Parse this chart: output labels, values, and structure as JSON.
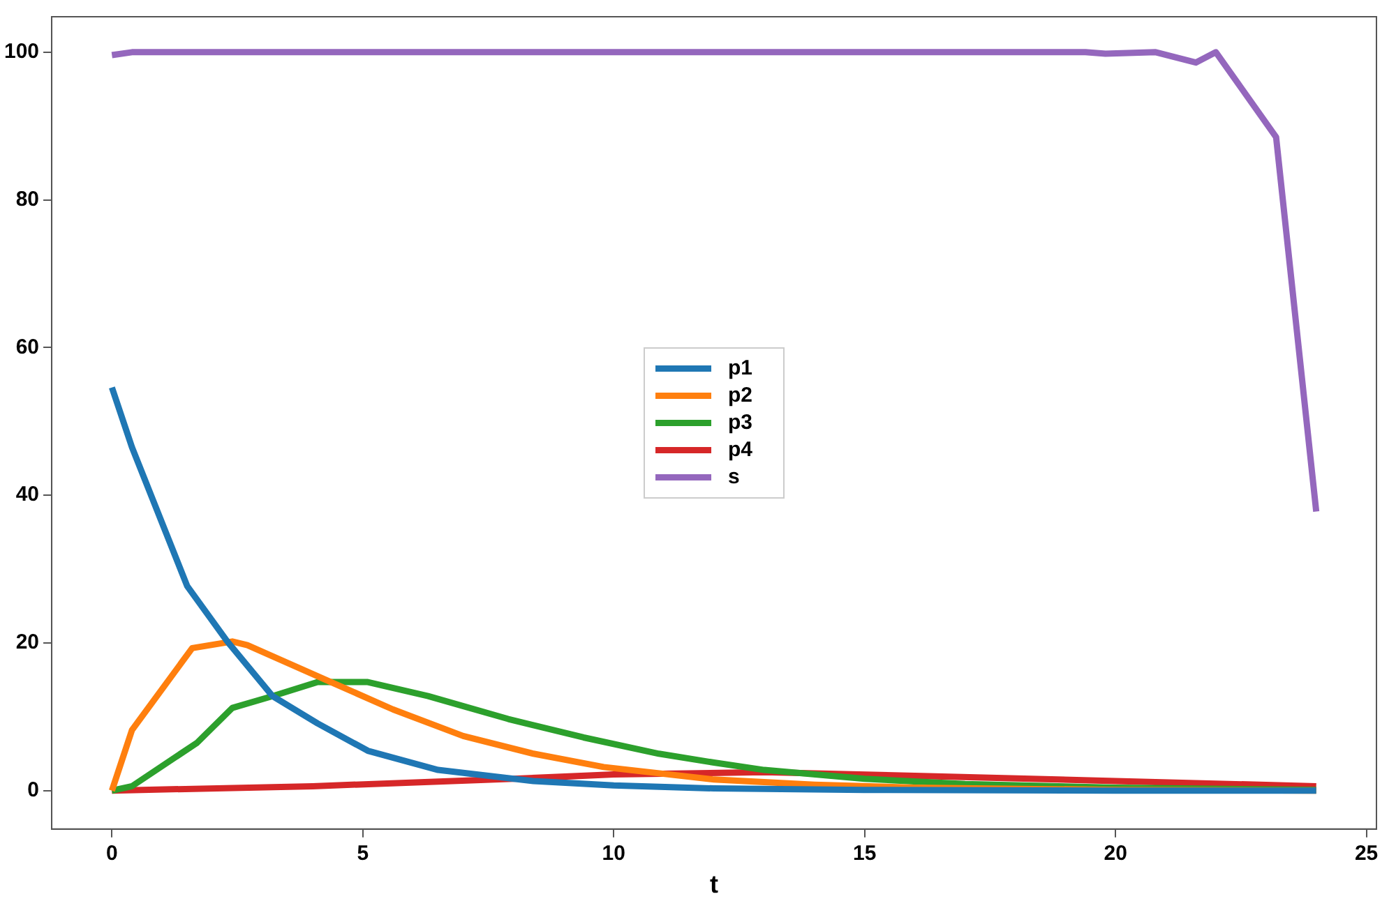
{
  "chart_data": {
    "type": "line",
    "xlabel": "t",
    "xlim": [
      -1.2,
      25.2
    ],
    "ylim": [
      -5.2,
      104.8
    ],
    "xticks": [
      0,
      5,
      10,
      15,
      20,
      25
    ],
    "yticks": [
      0,
      20,
      40,
      60,
      80,
      100
    ],
    "legend": "center",
    "grid": false,
    "marker": "none",
    "line_style": "solid",
    "series": [
      {
        "name": "p1",
        "color": "#1f77b4",
        "x": [
          0,
          0.4,
          1.5,
          2.3,
          3.2,
          4.1,
          5.1,
          6.5,
          8.4,
          10,
          12,
          15,
          20,
          24
        ],
        "values": [
          54.6,
          46.5,
          27.7,
          20.2,
          12.8,
          9.1,
          5.4,
          2.8,
          1.3,
          0.7,
          0.3,
          0.1,
          0,
          0
        ]
      },
      {
        "name": "p2",
        "color": "#ff7f0e",
        "x": [
          0,
          0.4,
          1.6,
          2.4,
          2.7,
          4.2,
          5.6,
          7,
          8.4,
          9.8,
          12,
          14,
          16,
          20,
          24
        ],
        "values": [
          0,
          8.2,
          19.3,
          20.2,
          19.7,
          15.2,
          11,
          7.4,
          5,
          3.2,
          1.5,
          0.8,
          0.4,
          0.1,
          0
        ]
      },
      {
        "name": "p3",
        "color": "#2ca02c",
        "x": [
          0,
          0.4,
          1.7,
          2.4,
          3.2,
          4.1,
          5.1,
          6.3,
          7.9,
          9.4,
          10.9,
          12,
          13,
          15,
          17,
          20,
          24
        ],
        "values": [
          0,
          0.6,
          6.5,
          11.2,
          12.8,
          14.7,
          14.7,
          12.8,
          9.7,
          7.2,
          5,
          3.8,
          2.8,
          1.6,
          0.9,
          0.4,
          0.1
        ]
      },
      {
        "name": "p4",
        "color": "#d62728",
        "x": [
          0,
          4,
          8,
          10,
          13,
          16,
          20,
          24
        ],
        "values": [
          0,
          0.6,
          1.6,
          2.2,
          2.5,
          2,
          1.3,
          0.6
        ]
      },
      {
        "name": "s",
        "color": "#9467bd",
        "x": [
          0,
          0.4,
          19.4,
          19.8,
          20.8,
          21.6,
          22,
          23.2,
          24
        ],
        "values": [
          99.6,
          100,
          100,
          99.8,
          100,
          98.6,
          100,
          88.5,
          37.8
        ]
      }
    ]
  }
}
